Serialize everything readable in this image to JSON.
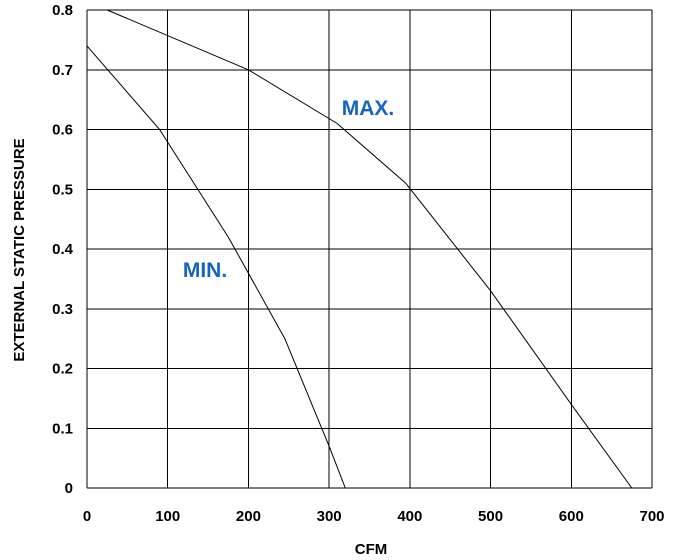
{
  "chart_data": {
    "type": "line",
    "xlabel": "CFM",
    "ylabel": "EXTERNAL STATIC PRESSURE",
    "xlim": [
      0,
      700
    ],
    "ylim": [
      0,
      0.8
    ],
    "x_ticks": [
      0,
      100,
      200,
      300,
      400,
      500,
      600,
      700
    ],
    "x_tick_labels": [
      "0",
      "100",
      "200",
      "300",
      "400",
      "500",
      "600",
      "700"
    ],
    "y_ticks": [
      0,
      0.1,
      0.2,
      0.3,
      0.4,
      0.5,
      0.6,
      0.7,
      0.8
    ],
    "y_tick_labels": [
      "0",
      "0.1",
      "0.2",
      "0.3",
      "0.4",
      "0.5",
      "0.6",
      "0.7",
      "0.8"
    ],
    "grid": true,
    "label_color": "#1565C0",
    "line_color": "#000000",
    "series": [
      {
        "name": "MAX.",
        "x": [
          25,
          200,
          310,
          395,
          500,
          600,
          675
        ],
        "y": [
          0.8,
          0.7,
          0.61,
          0.51,
          0.33,
          0.14,
          0.0
        ]
      },
      {
        "name": "MIN.",
        "x": [
          0,
          90,
          175,
          245,
          300,
          320
        ],
        "y": [
          0.74,
          0.6,
          0.42,
          0.25,
          0.07,
          0.0
        ]
      }
    ]
  }
}
